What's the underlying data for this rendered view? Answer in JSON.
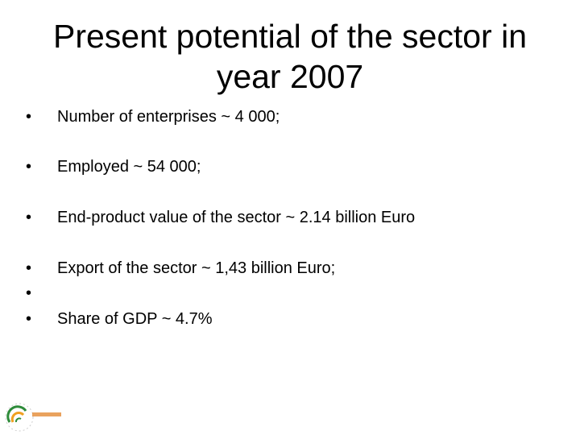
{
  "header": {
    "title": "Present potential of the sector in year 2007"
  },
  "bullets": [
    "Number of enterprises ~ 4 000;",
    "Employed ~ 54 000;",
    "End-product value of the sector ~ 2.14 billion Euro",
    "Export of the sector ~ 1,43 billion Euro;",
    "Share of GDP ~ 4.7%"
  ]
}
